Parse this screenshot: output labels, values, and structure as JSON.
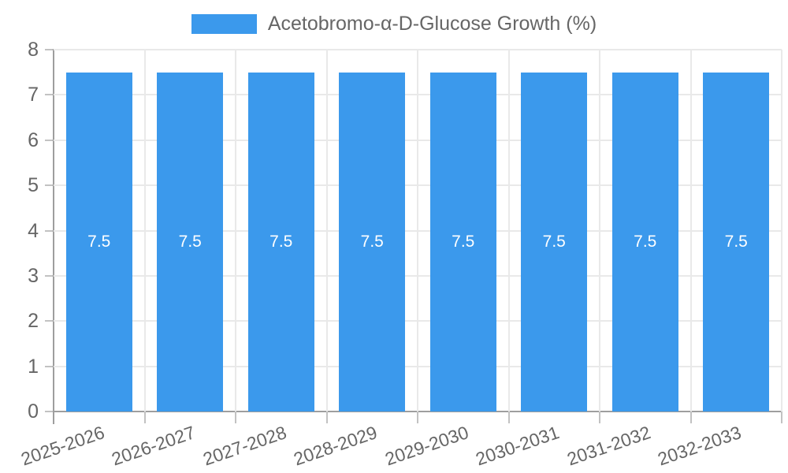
{
  "chart_data": {
    "type": "bar",
    "title": "",
    "legend": {
      "position": "top",
      "entries": [
        "Acetobromo-α-D-Glucose Growth (%)"
      ]
    },
    "categories": [
      "2025-2026",
      "2026-2027",
      "2027-2028",
      "2028-2029",
      "2029-2030",
      "2030-2031",
      "2031-2032",
      "2032-2033"
    ],
    "series": [
      {
        "name": "Acetobromo-α-D-Glucose Growth (%)",
        "values": [
          7.5,
          7.5,
          7.5,
          7.5,
          7.5,
          7.5,
          7.5,
          7.5
        ]
      }
    ],
    "bar_value_labels": [
      "7.5",
      "7.5",
      "7.5",
      "7.5",
      "7.5",
      "7.5",
      "7.5",
      "7.5"
    ],
    "xlabel": "",
    "ylabel": "",
    "ylim": [
      0,
      8
    ],
    "yticks": [
      0,
      1,
      2,
      3,
      4,
      5,
      6,
      7,
      8
    ],
    "grid": true,
    "colors": {
      "bar": "#3B99EC",
      "grid": "#E9E9E9",
      "axis": "#9E9E9E",
      "tick": "#C2C2C2",
      "text": "#666666",
      "bar_label": "#FFFFFF"
    }
  }
}
